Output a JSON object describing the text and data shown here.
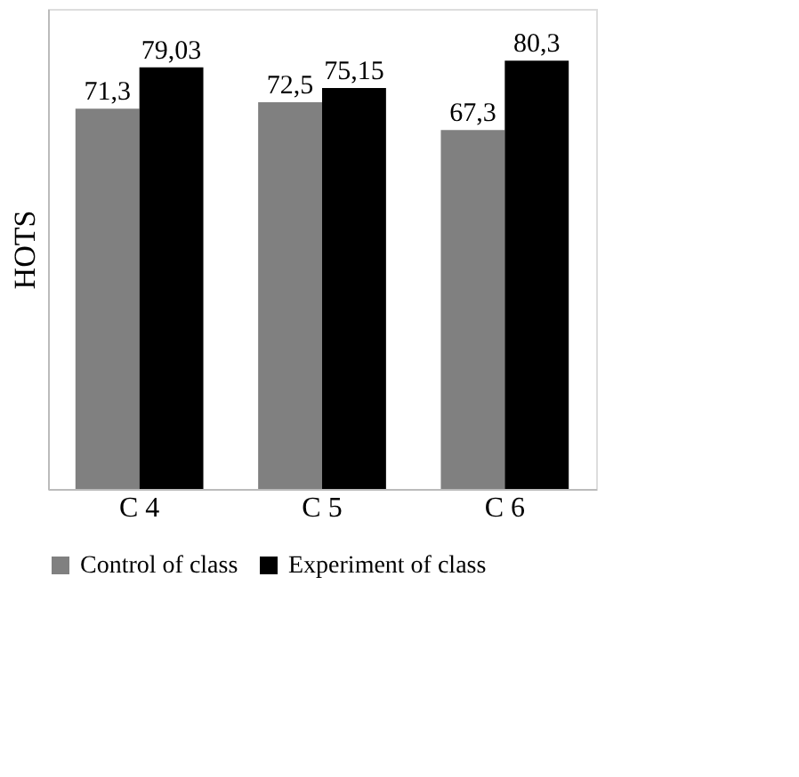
{
  "chart_data": {
    "type": "bar",
    "ylabel": "HOTS",
    "categories": [
      "C 4",
      "C 5",
      "C 6"
    ],
    "series": [
      {
        "name": "Control of class",
        "color": "#808080",
        "values": [
          71.3,
          72.5,
          67.3
        ],
        "value_labels": [
          "71,3",
          "72,5",
          "67,3"
        ]
      },
      {
        "name": "Experiment of class",
        "color": "#000000",
        "values": [
          79.03,
          75.15,
          80.3
        ],
        "value_labels": [
          "79,03",
          "75,15",
          "80,3"
        ]
      }
    ],
    "legend": "bottom",
    "grid": false
  }
}
